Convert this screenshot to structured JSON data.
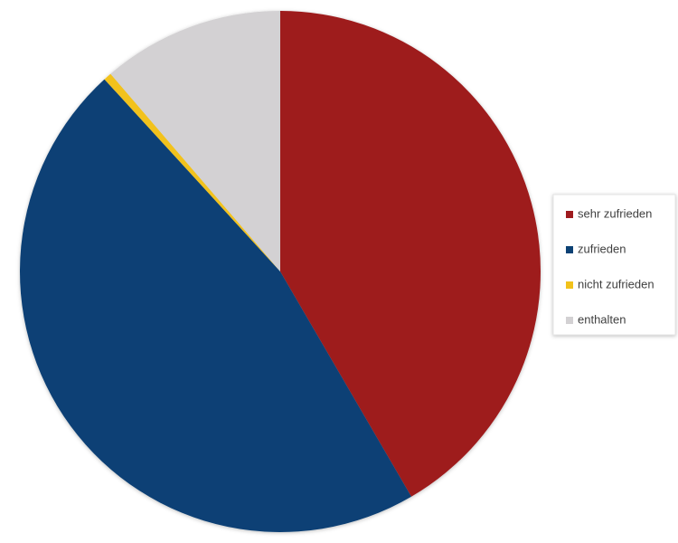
{
  "chart_data": {
    "type": "pie",
    "categories": [
      "sehr zufrieden",
      "zufrieden",
      "nicht zufrieden",
      "enthalten"
    ],
    "values": [
      41.6,
      46.6,
      0.5,
      11.3
    ],
    "colors": [
      "#9e1b1e",
      "#0c4174",
      "#f2c21b",
      "#d3d1d3"
    ],
    "legend": "right"
  }
}
